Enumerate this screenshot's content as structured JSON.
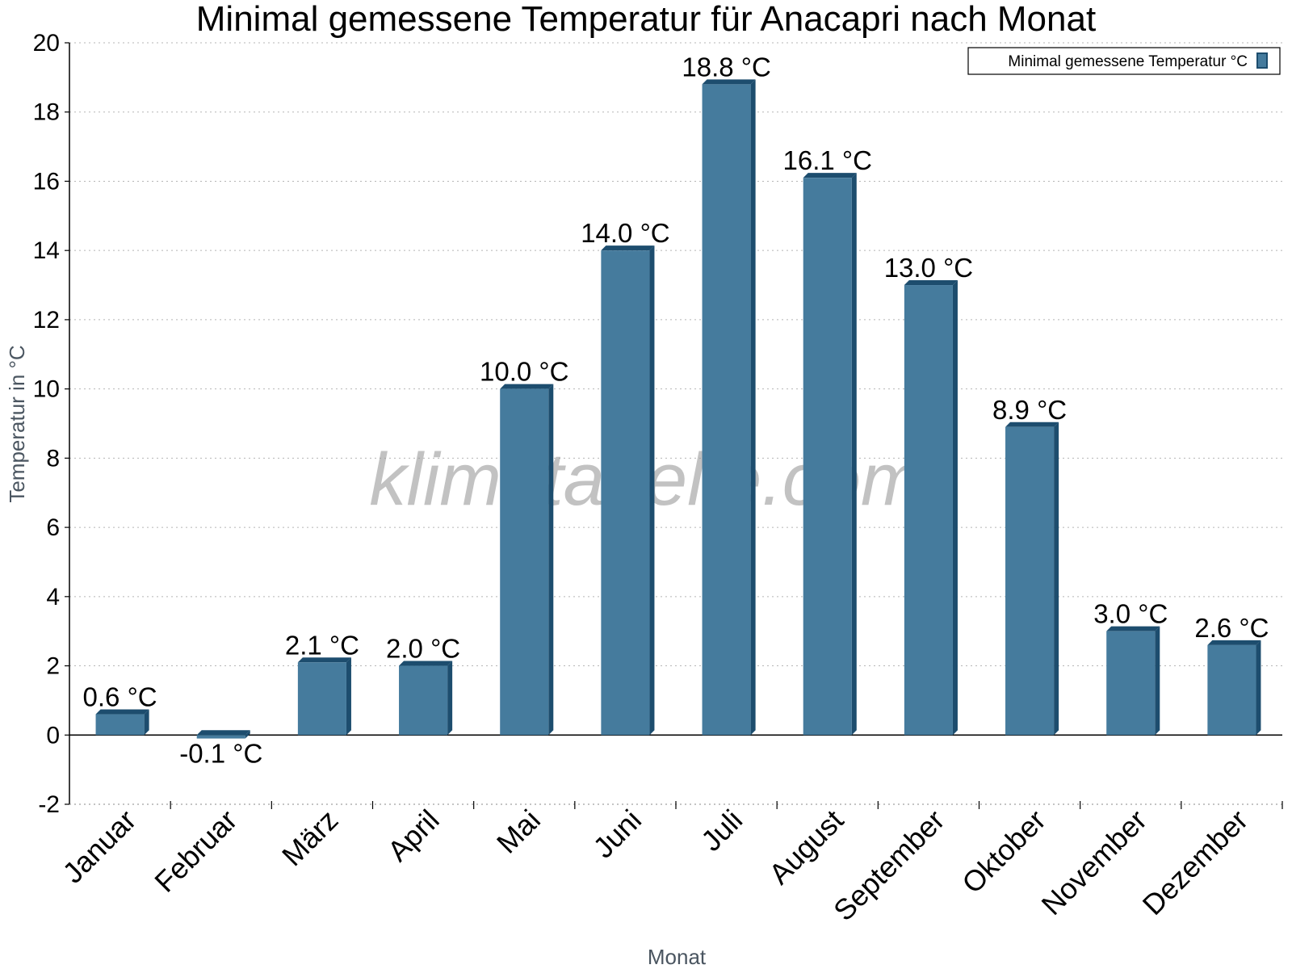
{
  "chart_data": {
    "type": "bar",
    "title": "Minimal gemessene Temperatur für Anacapri nach Monat",
    "xlabel": "Monat",
    "ylabel": "Temperatur in °C",
    "ylim": [
      -2,
      20
    ],
    "yticks": [
      -2,
      0,
      2,
      4,
      6,
      8,
      10,
      12,
      14,
      16,
      18,
      20
    ],
    "grid": true,
    "legend_position": "top-right",
    "categories": [
      "Januar",
      "Februar",
      "März",
      "April",
      "Mai",
      "Juni",
      "Juli",
      "August",
      "September",
      "Oktober",
      "November",
      "Dezember"
    ],
    "series": [
      {
        "name": "Minimal gemessene Temperatur °C",
        "values": [
          0.6,
          -0.1,
          2.1,
          2.0,
          10.0,
          14.0,
          18.8,
          16.1,
          13.0,
          8.9,
          3.0,
          2.6
        ],
        "labels": [
          "0.6 °C",
          "-0.1 °C",
          "2.1 °C",
          "2.0 °C",
          "10.0 °C",
          "14.0 °C",
          "18.8 °C",
          "16.1 °C",
          "13.0 °C",
          "8.9 °C",
          "3.0 °C",
          "2.6 °C"
        ],
        "color": "#457b9d",
        "edge_color": "#1d4d6e"
      }
    ],
    "watermark": "klimatabelle.com"
  }
}
